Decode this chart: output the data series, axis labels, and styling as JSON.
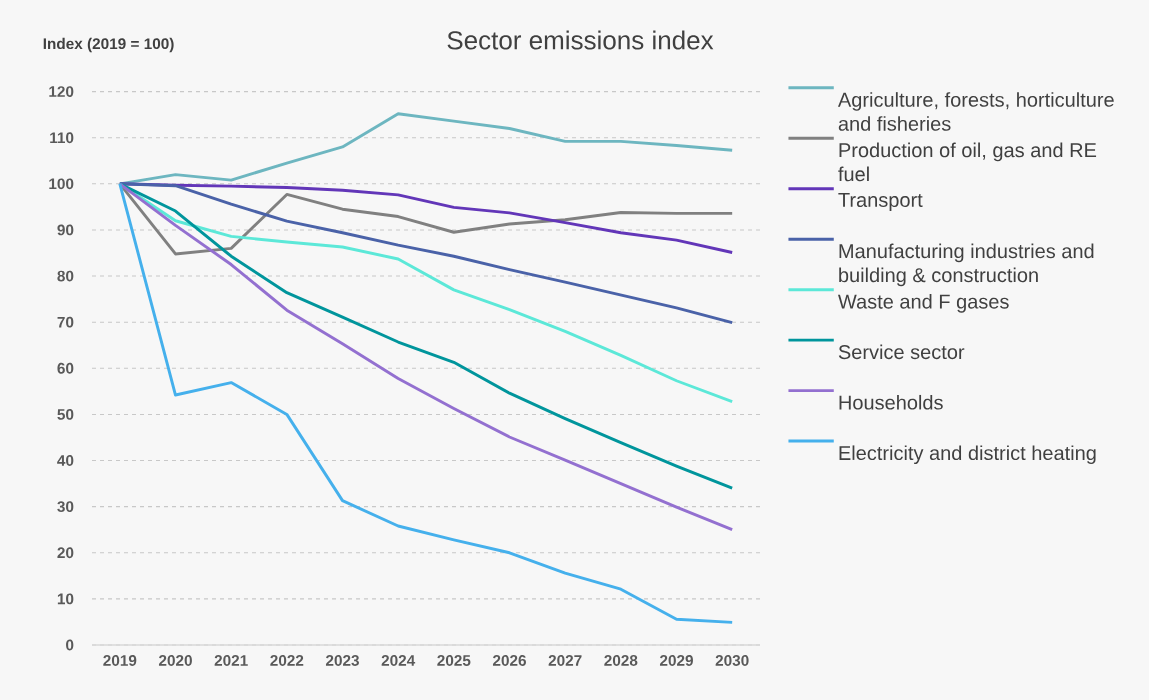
{
  "chart_data": {
    "type": "line",
    "title": "Sector emissions index",
    "ylabel": "Index (2019 = 100)",
    "categories": [
      "2019",
      "2020",
      "2021",
      "2022",
      "2023",
      "2024",
      "2025",
      "2026",
      "2027",
      "2028",
      "2029",
      "2030"
    ],
    "series": [
      {
        "name": "Agriculture, forests, horticulture and fisheries",
        "color": "#6db6c0",
        "values": [
          100,
          102,
          100.8,
          104.5,
          108,
          115.2,
          113.6,
          112,
          109.2,
          109.2,
          108.3,
          107.3
        ]
      },
      {
        "name": "Production of oil, gas and RE fuel",
        "color": "#808080",
        "values": [
          100,
          84.8,
          86,
          97.7,
          94.5,
          92.9,
          89.5,
          91.3,
          92.2,
          93.8,
          93.6,
          93.6
        ]
      },
      {
        "name": "Transport",
        "color": "#6236b8",
        "values": [
          100,
          99.7,
          99.5,
          99.2,
          98.6,
          97.6,
          94.9,
          93.7,
          91.6,
          89.4,
          87.8,
          85.1
        ]
      },
      {
        "name": "Manufacturing industries and building & construction",
        "color": "#4a62a8",
        "values": [
          100,
          99.6,
          95.6,
          91.9,
          89.4,
          86.7,
          84.3,
          81.4,
          78.7,
          75.9,
          73.1,
          69.9
        ]
      },
      {
        "name": "Waste and F gases",
        "color": "#5ce8d8",
        "values": [
          100,
          92,
          88.6,
          87.4,
          86.3,
          83.7,
          77,
          72.7,
          68,
          62.8,
          57.3,
          52.8
        ]
      },
      {
        "name": "Service sector",
        "color": "#00959c",
        "values": [
          100,
          94.1,
          84.3,
          76.4,
          71.1,
          65.7,
          61.3,
          54.6,
          49.1,
          43.9,
          38.8,
          34
        ]
      },
      {
        "name": "Households",
        "color": "#9370d0",
        "values": [
          100,
          91,
          82.5,
          72.6,
          65.3,
          57.8,
          51.3,
          45.1,
          40.1,
          35,
          29.9,
          25
        ]
      },
      {
        "name": "Electricity and district heating",
        "color": "#45b0ec",
        "values": [
          100,
          54.2,
          56.9,
          50,
          31.3,
          25.8,
          22.8,
          20,
          15.6,
          12.1,
          5.6,
          4.9
        ]
      }
    ],
    "ylim": [
      0,
      120
    ],
    "yticks": [
      0,
      10,
      20,
      30,
      40,
      50,
      60,
      70,
      80,
      90,
      100,
      110,
      120
    ],
    "grid": "y",
    "legend": "right",
    "line_style": "solid"
  }
}
